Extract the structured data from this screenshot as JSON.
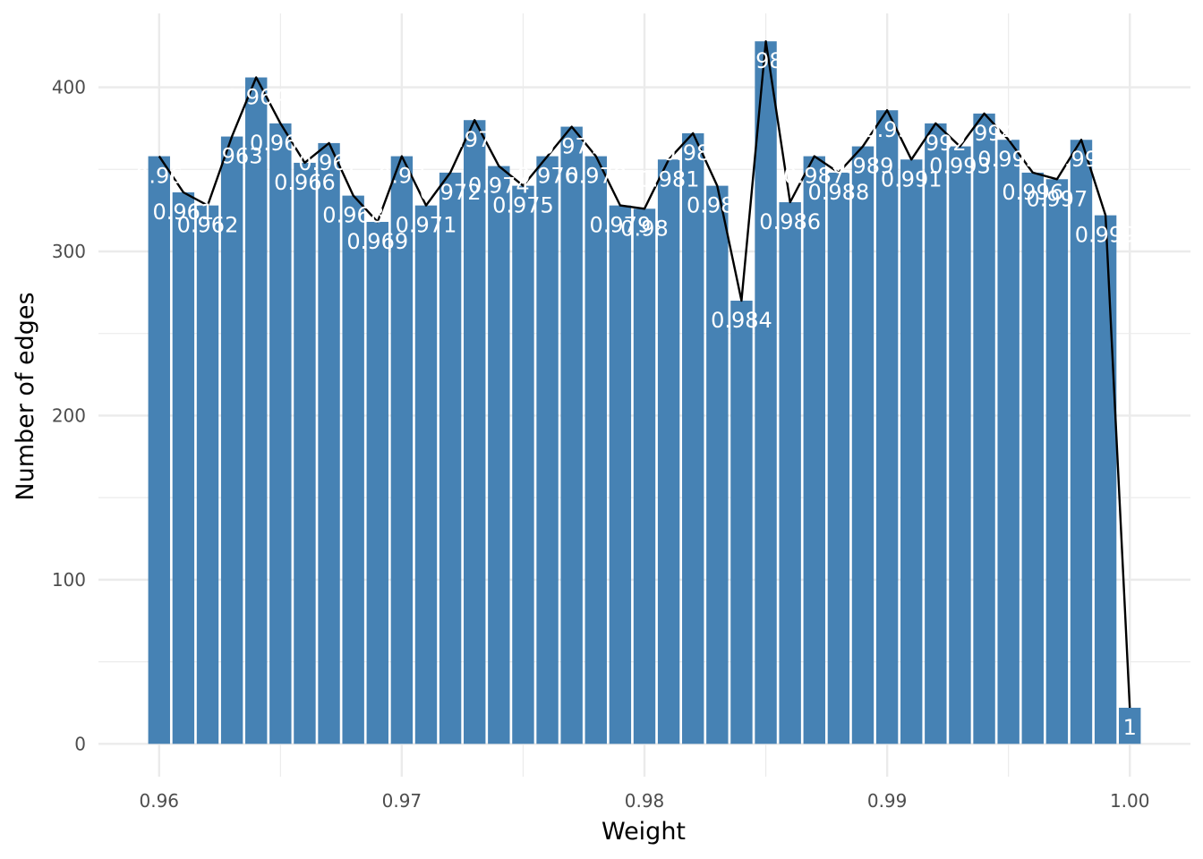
{
  "chart_data": {
    "type": "bar",
    "title": "",
    "xlabel": "Weight",
    "ylabel": "Number of edges",
    "xlim": [
      0.9575,
      1.0025
    ],
    "ylim": [
      -20,
      445
    ],
    "x_ticks": [
      0.96,
      0.97,
      0.98,
      0.99,
      1.0
    ],
    "x_tick_labels": [
      "0.96",
      "0.97",
      "0.98",
      "0.99",
      "1.00"
    ],
    "y_ticks": [
      0,
      100,
      200,
      300,
      400
    ],
    "y_tick_labels": [
      "0",
      "100",
      "200",
      "300",
      "400"
    ],
    "grid": true,
    "legend": "none",
    "colors": {
      "bar": "#4682b4",
      "line": "#000000",
      "label": "#ffffff",
      "grid": "#ebebeb"
    },
    "x": [
      0.96,
      0.961,
      0.962,
      0.963,
      0.964,
      0.965,
      0.966,
      0.967,
      0.968,
      0.969,
      0.97,
      0.971,
      0.972,
      0.973,
      0.974,
      0.975,
      0.976,
      0.977,
      0.978,
      0.979,
      0.98,
      0.981,
      0.982,
      0.983,
      0.984,
      0.985,
      0.986,
      0.987,
      0.988,
      0.989,
      0.99,
      0.991,
      0.992,
      0.993,
      0.994,
      0.995,
      0.996,
      0.997,
      0.998,
      0.999,
      1.0
    ],
    "values": [
      358,
      336,
      328,
      370,
      406,
      378,
      354,
      366,
      334,
      318,
      358,
      328,
      348,
      380,
      352,
      340,
      358,
      376,
      358,
      328,
      326,
      356,
      372,
      340,
      270,
      428,
      330,
      358,
      348,
      364,
      386,
      356,
      378,
      364,
      384,
      368,
      348,
      344,
      368,
      322,
      22
    ],
    "labels": [
      "0.96",
      "0.961",
      "0.962",
      "0.963",
      "0.964",
      "0.965",
      "0.966",
      "0.967",
      "0.968",
      "0.969",
      "0.97",
      "0.971",
      "0.972",
      "0.973",
      "0.974",
      "0.975",
      "0.976",
      "0.977",
      "0.978",
      "0.979",
      "0.98",
      "0.981",
      "0.982",
      "0.983",
      "0.984",
      "0.985",
      "0.986",
      "0.987",
      "0.988",
      "0.989",
      "0.99",
      "0.991",
      "0.992",
      "0.993",
      "0.994",
      "0.995",
      "0.996",
      "0.997",
      "0.998",
      "0.999",
      "1"
    ]
  }
}
